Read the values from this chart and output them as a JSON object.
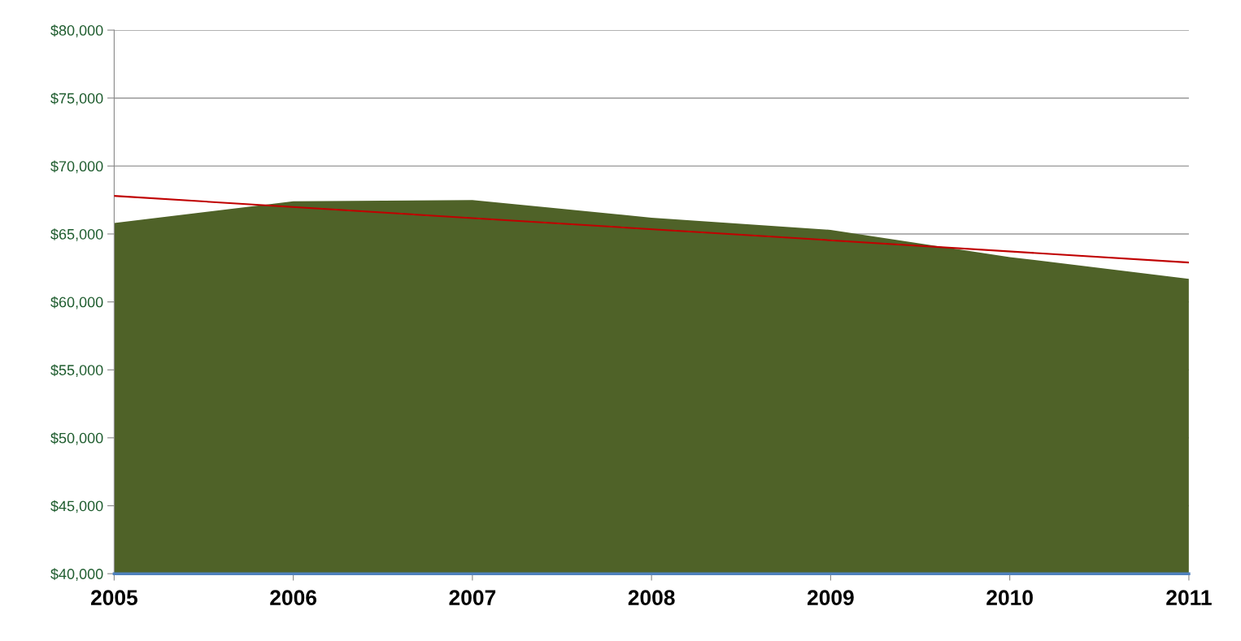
{
  "chart_data": {
    "type": "area",
    "x": [
      2005,
      2006,
      2007,
      2008,
      2009,
      2010,
      2011
    ],
    "series": [
      {
        "color": "#4f6228",
        "values": [
          65800,
          67400,
          67500,
          66200,
          65300,
          63300,
          61700
        ]
      },
      {
        "type": "line",
        "color": "#c00000",
        "x": [
          2005,
          2011
        ],
        "values": [
          67800,
          62900
        ]
      }
    ],
    "xlim": [
      2005,
      2011
    ],
    "xticks": [
      2005,
      2006,
      2007,
      2008,
      2009,
      2010,
      2011
    ],
    "ylim": [
      40000,
      80000
    ],
    "yticks": [
      {
        "value": 40000,
        "label": "$40,000"
      },
      {
        "value": 45000,
        "label": "$45,000"
      },
      {
        "value": 50000,
        "label": "$50,000"
      },
      {
        "value": 55000,
        "label": "$55,000"
      },
      {
        "value": 60000,
        "label": "$60,000"
      },
      {
        "value": 65000,
        "label": "$65,000"
      },
      {
        "value": 70000,
        "label": "$70,000"
      },
      {
        "value": 75000,
        "label": "$75,000"
      },
      {
        "value": 80000,
        "label": "$80,000"
      }
    ],
    "grid": "y",
    "legend": false
  }
}
